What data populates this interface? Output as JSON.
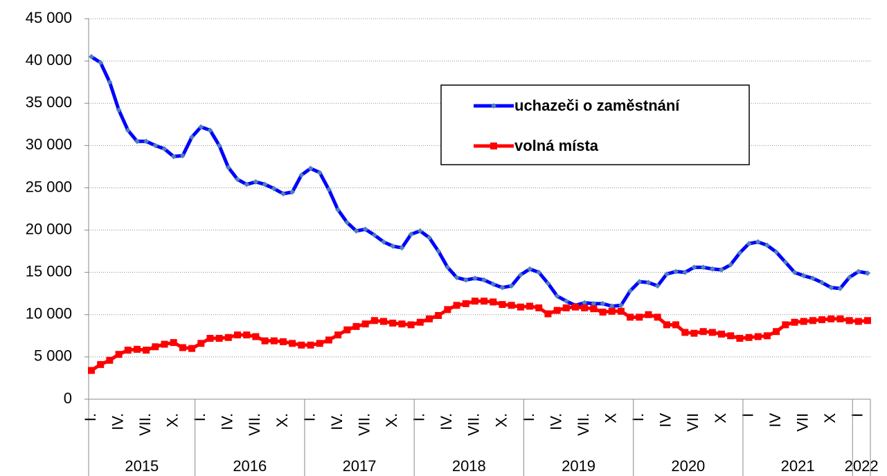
{
  "chart_data": {
    "type": "line",
    "categories": [
      "I.",
      null,
      null,
      "IV.",
      null,
      null,
      "VII.",
      null,
      null,
      "X.",
      null,
      null,
      "I.",
      null,
      null,
      "IV.",
      null,
      null,
      "VII.",
      null,
      null,
      "X.",
      null,
      null,
      "I.",
      null,
      null,
      "IV.",
      null,
      null,
      "VII.",
      null,
      null,
      "X.",
      null,
      null,
      "I.",
      null,
      null,
      "IV.",
      null,
      null,
      "VII.",
      null,
      null,
      "X.",
      null,
      null,
      "I.",
      null,
      null,
      "IV.",
      null,
      null,
      "VII.",
      null,
      null,
      "X",
      null,
      null,
      "I.",
      null,
      null,
      "IV",
      null,
      null,
      "VII",
      null,
      null,
      "X",
      null,
      null,
      "I",
      null,
      null,
      "IV",
      null,
      null,
      "VII",
      null,
      null,
      "X",
      null,
      null,
      "I",
      null
    ],
    "years": [
      "2015",
      "2016",
      "2017",
      "2018",
      "2019",
      "2020",
      "2021",
      "2022"
    ],
    "series": [
      {
        "name": "uchazeči o zaměstnání",
        "color": "#0000ff",
        "marker_color": "#4f81bd",
        "marker": "diamond",
        "values": [
          40500,
          39800,
          37500,
          34200,
          31800,
          30500,
          30500,
          30000,
          29600,
          28700,
          28800,
          31000,
          32200,
          31800,
          30000,
          27400,
          26000,
          25400,
          25700,
          25400,
          24900,
          24300,
          24500,
          26500,
          27300,
          26800,
          24800,
          22400,
          20900,
          19900,
          20100,
          19400,
          18600,
          18100,
          17900,
          19500,
          19900,
          19100,
          17500,
          15600,
          14400,
          14100,
          14300,
          14100,
          13600,
          13200,
          13400,
          14700,
          15400,
          15000,
          13700,
          12200,
          11600,
          11100,
          11400,
          11300,
          11300,
          11000,
          11100,
          12800,
          13900,
          13800,
          13400,
          14800,
          15100,
          15000,
          15600,
          15600,
          15400,
          15300,
          15900,
          17300,
          18400,
          18600,
          18200,
          17400,
          16200,
          15000,
          14600,
          14300,
          13800,
          13200,
          13100,
          14400,
          15100,
          14900
        ]
      },
      {
        "name": "volná místa",
        "color": "#ff0000",
        "marker_color": "#ff0000",
        "marker": "square",
        "values": [
          3400,
          4100,
          4600,
          5300,
          5800,
          5900,
          5800,
          6200,
          6500,
          6700,
          6100,
          6000,
          6600,
          7200,
          7200,
          7300,
          7600,
          7600,
          7400,
          6900,
          6900,
          6800,
          6600,
          6400,
          6400,
          6600,
          7000,
          7600,
          8200,
          8600,
          8900,
          9300,
          9200,
          9000,
          8900,
          8800,
          9100,
          9500,
          9900,
          10600,
          11100,
          11300,
          11600,
          11600,
          11500,
          11200,
          11100,
          10900,
          11000,
          10800,
          10100,
          10500,
          10800,
          10900,
          10800,
          10700,
          10300,
          10400,
          10400,
          9700,
          9700,
          10000,
          9700,
          8800,
          8800,
          7900,
          7800,
          8000,
          7900,
          7700,
          7500,
          7200,
          7300,
          7400,
          7500,
          8000,
          8800,
          9100,
          9200,
          9300,
          9400,
          9500,
          9500,
          9300,
          9200,
          9300
        ]
      }
    ],
    "ylim": [
      0,
      45000
    ],
    "yticks": [
      0,
      {
        "value": 5000,
        "label": "5 000"
      },
      {
        "value": 10000,
        "label": "10 000"
      },
      {
        "value": 15000,
        "label": "15 000"
      },
      {
        "value": 20000,
        "label": "20 000"
      },
      {
        "value": 25000,
        "label": "25 000"
      },
      {
        "value": 30000,
        "label": "30 000"
      },
      {
        "value": 35000,
        "label": "35 000"
      },
      {
        "value": 40000,
        "label": "40 000"
      },
      {
        "value": 45000,
        "label": "45 000"
      }
    ],
    "grid": true,
    "legend": "upper right"
  }
}
